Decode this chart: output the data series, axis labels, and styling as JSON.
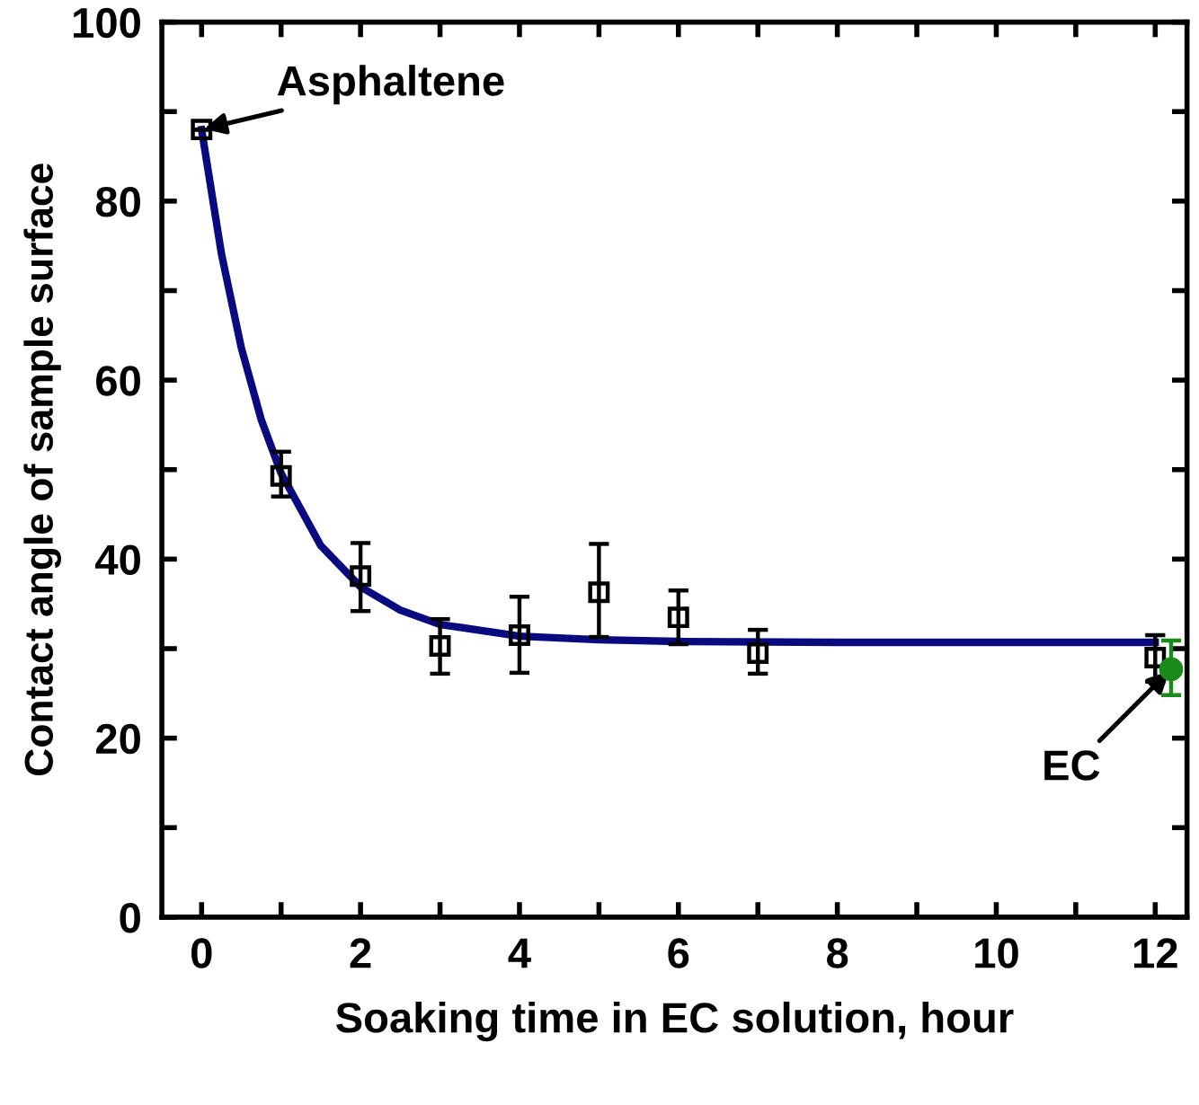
{
  "chart_data": {
    "type": "scatter",
    "xlabel": "Soaking time in EC solution, hour",
    "ylabel": "Contact angle of sample surface",
    "series": [
      {
        "type": "line",
        "color": "#0a0a80",
        "marker": "none",
        "line_style": "solid",
        "x": [
          0,
          0.25,
          0.5,
          0.75,
          1,
          1.5,
          2,
          2.5,
          3,
          4,
          5,
          6,
          8,
          10,
          12
        ],
        "values": [
          88,
          74.1,
          63.6,
          55.6,
          49.6,
          41.5,
          36.9,
          34.3,
          32.7,
          31.4,
          31.0,
          30.8,
          30.7,
          30.7,
          30.7
        ]
      },
      {
        "color": "#000000",
        "marker": "square",
        "x": [
          0,
          1,
          2,
          3,
          4,
          5,
          6,
          7,
          12
        ],
        "values": [
          88,
          49.3,
          38.1,
          30.3,
          31.5,
          36.3,
          33.5,
          29.5,
          29
        ],
        "errors": [
          null,
          [
            47,
            52
          ],
          [
            34.2,
            41.8
          ],
          [
            27.2,
            33.3
          ],
          [
            27.3,
            35.8
          ],
          [
            31.3,
            41.7
          ],
          [
            30.5,
            36.5
          ],
          [
            27.2,
            32.1
          ],
          [
            26.3,
            31.5
          ]
        ]
      },
      {
        "color": "#1a8a1a",
        "marker": "circle",
        "x": [
          12.2
        ],
        "values": [
          27.7
        ],
        "errors": [
          [
            24.8,
            30.9
          ]
        ]
      }
    ],
    "annotations": [
      {
        "text": "Asphaltene",
        "x": 0,
        "y": 88
      },
      {
        "text": "EC",
        "x": 12.2,
        "y": 27.7
      }
    ],
    "xlim": [
      -0.5,
      12.4
    ],
    "xticks": [
      0,
      {
        "value": 1,
        "label": null
      },
      2,
      {
        "value": 3,
        "label": null
      },
      4,
      {
        "value": 5,
        "label": null
      },
      6,
      {
        "value": 7,
        "label": null
      },
      8,
      {
        "value": 9,
        "label": null
      },
      10,
      {
        "value": 11,
        "label": null
      },
      12
    ],
    "ylim": [
      0,
      100
    ],
    "yticks": [
      0,
      {
        "value": 10,
        "label": null
      },
      20,
      {
        "value": 30,
        "label": null
      },
      40,
      {
        "value": 50,
        "label": null
      },
      60,
      {
        "value": 70,
        "label": null
      },
      80,
      {
        "value": 90,
        "label": null
      },
      100
    ],
    "grid": false,
    "legend": false
  }
}
